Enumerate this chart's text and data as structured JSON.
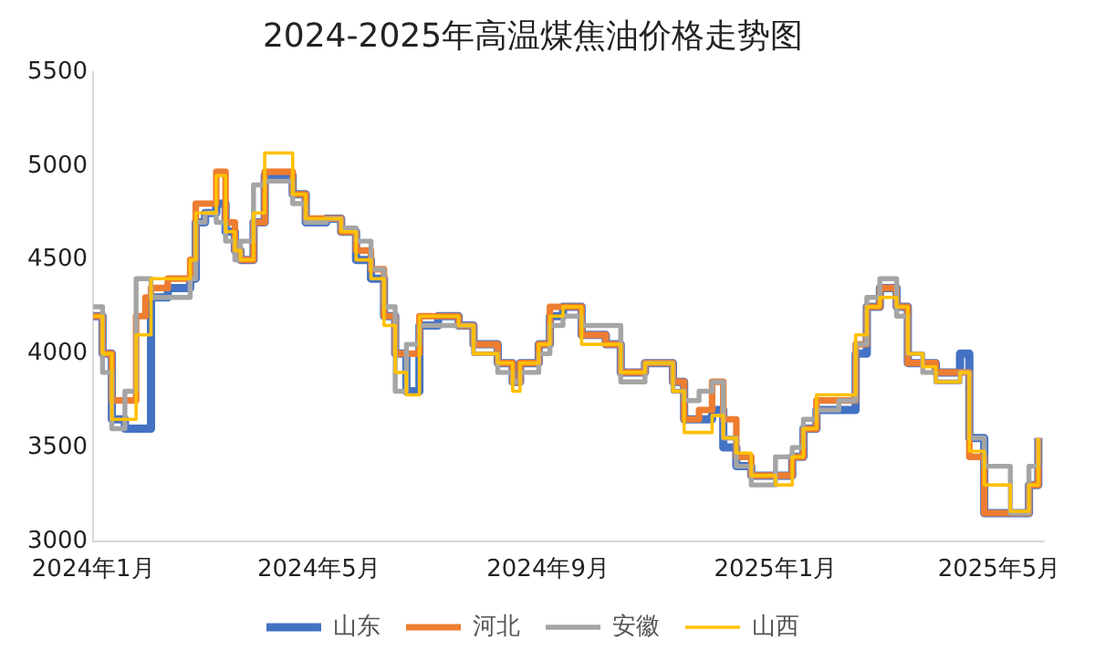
{
  "chart_data": {
    "type": "step",
    "title": "2024-2025年高温煤焦油价格走势图",
    "x": [
      "2024-01-01",
      "2024-01-06",
      "2024-01-11",
      "2024-01-18",
      "2024-01-24",
      "2024-01-29",
      "2024-02-01",
      "2024-02-10",
      "2024-02-22",
      "2024-02-25",
      "2024-03-01",
      "2024-03-07",
      "2024-03-12",
      "2024-03-17",
      "2024-03-20",
      "2024-03-27",
      "2024-04-02",
      "2024-04-10",
      "2024-04-17",
      "2024-04-24",
      "2024-05-05",
      "2024-05-13",
      "2024-05-21",
      "2024-05-29",
      "2024-06-05",
      "2024-06-11",
      "2024-06-17",
      "2024-06-24",
      "2024-07-04",
      "2024-07-15",
      "2024-07-23",
      "2024-08-05",
      "2024-08-13",
      "2024-08-17",
      "2024-08-27",
      "2024-09-02",
      "2024-09-09",
      "2024-09-19",
      "2024-10-02",
      "2024-10-10",
      "2024-10-23",
      "2024-11-07",
      "2024-11-13",
      "2024-11-21",
      "2024-11-28",
      "2024-12-04",
      "2024-12-11",
      "2024-12-19",
      "2025-01-01",
      "2025-01-10",
      "2025-01-16",
      "2025-01-23",
      "2025-02-04",
      "2025-02-13",
      "2025-02-19",
      "2025-02-26",
      "2025-03-07",
      "2025-03-13",
      "2025-03-21",
      "2025-03-28",
      "2025-04-10",
      "2025-04-15",
      "2025-04-23",
      "2025-04-30",
      "2025-05-07",
      "2025-05-17",
      "2025-05-22"
    ],
    "series": [
      {
        "name": "山东",
        "color": "#4472c4",
        "values": [
          4200,
          4000,
          3650,
          3600,
          3600,
          3600,
          4300,
          4350,
          4400,
          4700,
          4750,
          4800,
          4650,
          4550,
          4500,
          4700,
          4950,
          4950,
          4850,
          4700,
          4720,
          4650,
          4500,
          4400,
          4200,
          4000,
          3800,
          4150,
          4200,
          4150,
          4050,
          3950,
          3850,
          3950,
          4050,
          4200,
          4250,
          4100,
          4050,
          3900,
          3950,
          3850,
          3650,
          3650,
          3700,
          3500,
          3400,
          3350,
          3350,
          3450,
          3600,
          3700,
          3700,
          4000,
          4250,
          4350,
          4250,
          3950,
          3950,
          3900,
          4000,
          3550,
          3150,
          3150,
          3150,
          3300,
          3550
        ]
      },
      {
        "name": "河北",
        "color": "#ed7d31",
        "values": [
          4200,
          4000,
          3750,
          3750,
          4200,
          4300,
          4350,
          4400,
          4500,
          4800,
          4800,
          4970,
          4700,
          4550,
          4500,
          4700,
          4970,
          4970,
          4850,
          4720,
          4720,
          4650,
          4550,
          4450,
          4200,
          4000,
          4000,
          4200,
          4200,
          4150,
          4050,
          3950,
          3850,
          3950,
          4050,
          4250,
          4250,
          4100,
          4050,
          3900,
          3950,
          3850,
          3650,
          3700,
          3850,
          3650,
          3450,
          3350,
          3350,
          3450,
          3600,
          3750,
          3750,
          4050,
          4250,
          4350,
          4250,
          3950,
          3950,
          3900,
          3900,
          3450,
          3150,
          3150,
          3150,
          3300,
          3550
        ]
      },
      {
        "name": "安徽",
        "color": "#a5a5a5",
        "values": [
          4250,
          3900,
          3600,
          3800,
          4400,
          4400,
          4300,
          4300,
          4400,
          4700,
          4750,
          4700,
          4600,
          4500,
          4600,
          4900,
          4920,
          4920,
          4800,
          4700,
          4720,
          4670,
          4600,
          4450,
          4250,
          3800,
          4050,
          4150,
          4150,
          4150,
          4000,
          3900,
          3850,
          3900,
          4000,
          4150,
          4200,
          4150,
          4150,
          3850,
          3950,
          3800,
          3750,
          3800,
          3850,
          3550,
          3400,
          3300,
          3450,
          3500,
          3650,
          3700,
          3750,
          4050,
          4300,
          4400,
          4200,
          4000,
          3900,
          3850,
          3900,
          3550,
          3400,
          3400,
          3150,
          3400,
          3550
        ]
      },
      {
        "name": "山西",
        "color": "#ffc000",
        "values": [
          4200,
          4000,
          3650,
          3650,
          4100,
          4100,
          4400,
          4400,
          4500,
          4750,
          4750,
          4950,
          4650,
          4550,
          4500,
          4750,
          5070,
          5070,
          4850,
          4720,
          4720,
          4650,
          4500,
          4400,
          4150,
          3900,
          3780,
          4200,
          4200,
          4150,
          4000,
          3950,
          3800,
          3950,
          4050,
          4200,
          4250,
          4050,
          4050,
          3900,
          3950,
          3800,
          3580,
          3580,
          3670,
          3550,
          3470,
          3350,
          3300,
          3450,
          3600,
          3780,
          3780,
          4100,
          4250,
          4300,
          4250,
          4000,
          3930,
          3850,
          3900,
          3480,
          3300,
          3300,
          3160,
          3300,
          3550
        ]
      }
    ],
    "xlim": [
      "2024-01-01",
      "2025-05-25"
    ],
    "xticks": [
      {
        "value": "2024-01-01",
        "label": "2024年1月"
      },
      {
        "value": "2024-05-01",
        "label": "2024年5月"
      },
      {
        "value": "2024-09-01",
        "label": "2024年9月"
      },
      {
        "value": "2025-01-01",
        "label": "2025年1月"
      },
      {
        "value": "2025-05-01",
        "label": "2025年5月"
      }
    ],
    "ylim": [
      3000,
      5500
    ],
    "yticks": [
      3000,
      3500,
      4000,
      4500,
      5000,
      5500
    ],
    "grid": false,
    "legend": "bottom",
    "line_style": "solid",
    "marker": "none"
  }
}
